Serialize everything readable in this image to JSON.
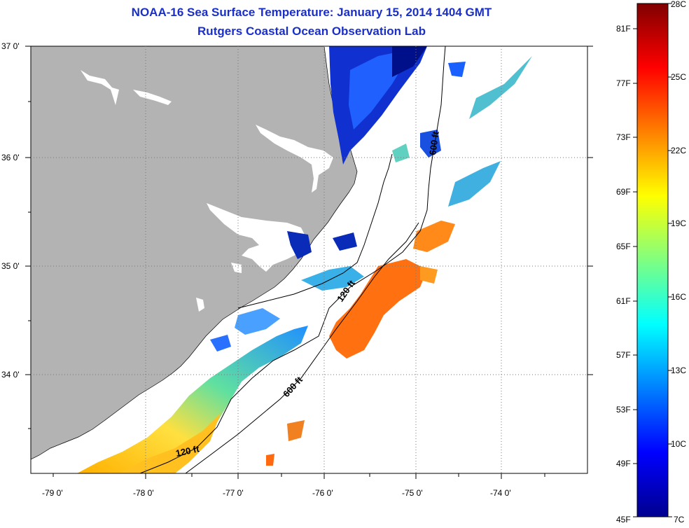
{
  "titles": {
    "line1": "NOAA-16 Sea Surface Temperature:  January 15, 2014 1404 GMT",
    "line2": "Rutgers Coastal Ocean Observation Lab"
  },
  "axes": {
    "lat_labels": [
      "37 0'",
      "36 0'",
      "35 0'",
      "34 0'"
    ],
    "lon_labels": [
      "-79 0'",
      "-78 0'",
      "-77 0'",
      "-76 0'",
      "-75 0'",
      "-74 0'"
    ]
  },
  "contours": {
    "labels": [
      "120 ft",
      "600 ft",
      "120 ft",
      "600 ft"
    ]
  },
  "colorbar": {
    "f_labels": [
      "81F",
      "77F",
      "73F",
      "69F",
      "65F",
      "61F",
      "57F",
      "53F",
      "49F",
      "45F"
    ],
    "c_labels": [
      "28C",
      "25C",
      "22C",
      "19C",
      "16C",
      "13C",
      "10C",
      "7C"
    ],
    "colors": [
      "#800000",
      "#ff0000",
      "#ff8000",
      "#ffff00",
      "#80ff80",
      "#00ffff",
      "#0080ff",
      "#0000ff",
      "#00008f"
    ]
  },
  "map_colors": {
    "land": "#b3b3b3",
    "ocean_nodata": "#ffffff",
    "title_color": "#1a2fc8"
  }
}
